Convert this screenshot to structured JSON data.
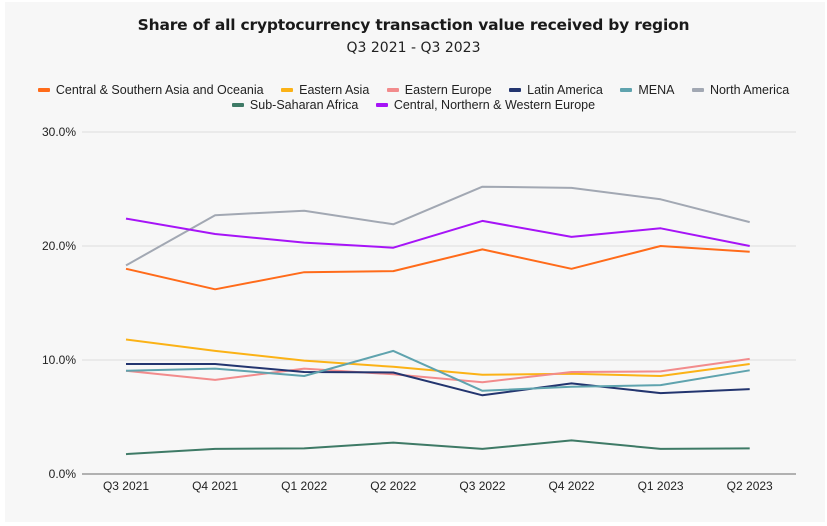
{
  "chart_data": {
    "type": "line",
    "title": "Share of all cryptocurrency transaction value received by region",
    "subtitle": "Q3 2021 - Q3 2023",
    "xlabel": "",
    "ylabel": "",
    "categories": [
      "Q3 2021",
      "Q4 2021",
      "Q1 2022",
      "Q2 2022",
      "Q3 2022",
      "Q4 2022",
      "Q1 2023",
      "Q2 2023"
    ],
    "ylim": [
      0,
      30
    ],
    "yticks": [
      0,
      10,
      20,
      30
    ],
    "ytick_labels": [
      "0.0%",
      "10.0%",
      "20.0%",
      "30.0%"
    ],
    "grid": true,
    "legend_position": "top",
    "series": [
      {
        "name": "Central & Southern Asia and Oceania",
        "color": "#ff6b1a",
        "values": [
          18.0,
          16.2,
          17.7,
          17.8,
          19.7,
          18.0,
          20.0,
          19.5
        ]
      },
      {
        "name": "Eastern Asia",
        "color": "#fbb216",
        "values": [
          11.8,
          10.8,
          9.95,
          9.4,
          8.7,
          8.8,
          8.6,
          9.65
        ]
      },
      {
        "name": "Eastern Europe",
        "color": "#f28b8c",
        "values": [
          9.05,
          8.25,
          9.25,
          8.75,
          8.05,
          8.95,
          9.0,
          10.1
        ]
      },
      {
        "name": "Latin America",
        "color": "#23356f",
        "values": [
          9.65,
          9.65,
          8.95,
          8.9,
          6.9,
          7.95,
          7.1,
          7.45
        ]
      },
      {
        "name": "MENA",
        "color": "#5fa3ae",
        "values": [
          9.05,
          9.25,
          8.6,
          10.8,
          7.3,
          7.65,
          7.8,
          9.1
        ]
      },
      {
        "name": "North America",
        "color": "#a2a8b3",
        "values": [
          18.3,
          22.7,
          23.1,
          21.9,
          25.2,
          25.1,
          24.1,
          22.1
        ]
      },
      {
        "name": "Sub-Saharan Africa",
        "color": "#3e7a66",
        "values": [
          1.75,
          2.2,
          2.25,
          2.75,
          2.2,
          2.95,
          2.2,
          2.25
        ]
      },
      {
        "name": "Central, Northern & Western Europe",
        "color": "#a614f7",
        "values": [
          22.4,
          21.05,
          20.3,
          19.85,
          22.2,
          20.8,
          21.55,
          20.0
        ]
      }
    ]
  }
}
